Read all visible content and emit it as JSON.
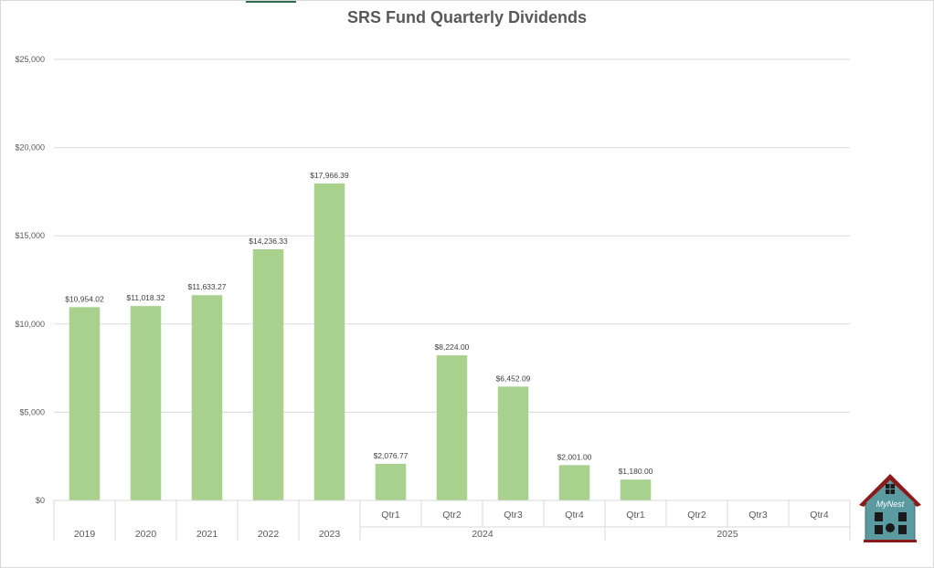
{
  "chart_data": {
    "type": "bar",
    "title": "SRS Fund Quarterly Dividends",
    "xlabel": "",
    "ylabel": "",
    "ylim": [
      0,
      25000
    ],
    "yticks": [
      {
        "value": 0,
        "label": "$0"
      },
      {
        "value": 5000,
        "label": "$5,000"
      },
      {
        "value": 10000,
        "label": "$10,000"
      },
      {
        "value": 15000,
        "label": "$15,000"
      },
      {
        "value": 20000,
        "label": "$20,000"
      },
      {
        "value": 25000,
        "label": "$25,000"
      }
    ],
    "grid": true,
    "legend": "none",
    "color": "#a9d18e",
    "categories": [
      {
        "label": "2019",
        "group": "",
        "value": 10954.02,
        "data_label": "$10,954.02"
      },
      {
        "label": "2020",
        "group": "",
        "value": 11018.32,
        "data_label": "$11,018.32"
      },
      {
        "label": "2021",
        "group": "",
        "value": 11633.27,
        "data_label": "$11,633.27"
      },
      {
        "label": "2022",
        "group": "",
        "value": 14236.33,
        "data_label": "$14,236.33"
      },
      {
        "label": "2023",
        "group": "",
        "value": 17966.39,
        "data_label": "$17,966.39"
      },
      {
        "label": "Qtr1",
        "group": "2024",
        "value": 2076.77,
        "data_label": "$2,076.77"
      },
      {
        "label": "Qtr2",
        "group": "2024",
        "value": 8224.0,
        "data_label": "$8,224.00"
      },
      {
        "label": "Qtr3",
        "group": "2024",
        "value": 6452.09,
        "data_label": "$6,452.09"
      },
      {
        "label": "Qtr4",
        "group": "2024",
        "value": 2001.0,
        "data_label": "$2,001.00"
      },
      {
        "label": "Qtr1",
        "group": "2025",
        "value": 1180.0,
        "data_label": "$1,180.00"
      },
      {
        "label": "Qtr2",
        "group": "2025",
        "value": null,
        "data_label": ""
      },
      {
        "label": "Qtr3",
        "group": "2025",
        "value": null,
        "data_label": ""
      },
      {
        "label": "Qtr4",
        "group": "2025",
        "value": null,
        "data_label": ""
      }
    ],
    "groups": [
      "2024",
      "2025"
    ]
  },
  "logo": {
    "text": "MyNest"
  }
}
